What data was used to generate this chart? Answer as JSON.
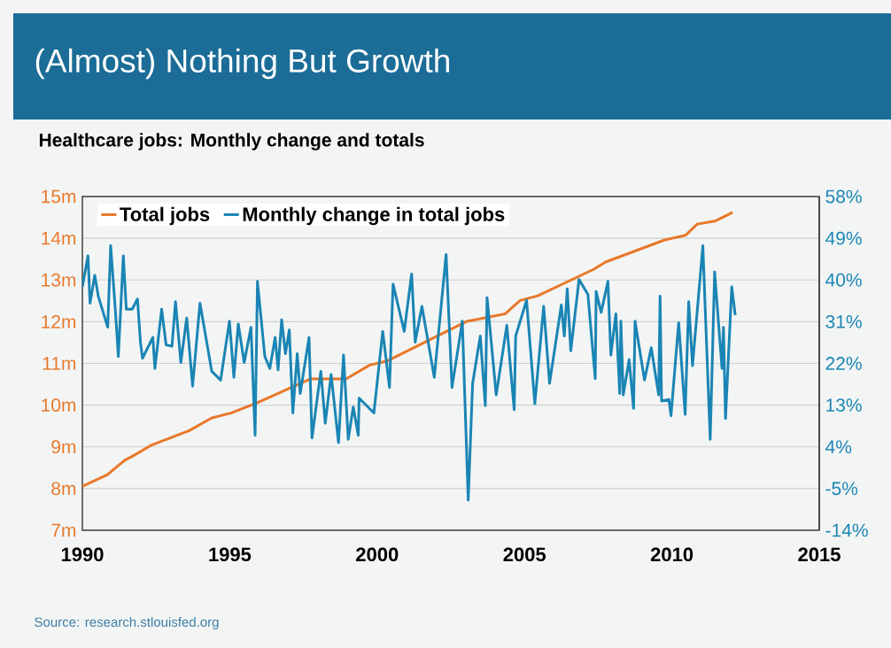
{
  "chart_data": {
    "type": "line",
    "title": "(Almost) Nothing But Growth",
    "subtitle": "Healthcare jobs: Monthly change and totals",
    "annotations": [
      "Source: research.stlouisfed.org"
    ],
    "xlim": [
      1990,
      2015
    ],
    "xticks": [
      1990,
      1995,
      2000,
      2005,
      2010,
      2015
    ],
    "ylim": [
      7,
      15
    ],
    "yticks": [
      {
        "value": 7,
        "label": "7m"
      },
      {
        "value": 8,
        "label": "8m"
      },
      {
        "value": 9,
        "label": "9m"
      },
      {
        "value": 10,
        "label": "10m"
      },
      {
        "value": 11,
        "label": "11m"
      },
      {
        "value": 12,
        "label": "12m"
      },
      {
        "value": 13,
        "label": "13m"
      },
      {
        "value": 14,
        "label": "14m"
      },
      {
        "value": 15,
        "label": "15m"
      }
    ],
    "y2lim": [
      -14,
      58
    ],
    "y2ticks": [
      {
        "value": -14,
        "label": "-14%"
      },
      {
        "value": -5,
        "label": "-5%"
      },
      {
        "value": 4,
        "label": "4%"
      },
      {
        "value": 13,
        "label": "13%"
      },
      {
        "value": 22,
        "label": "22%"
      },
      {
        "value": 31,
        "label": "31%"
      },
      {
        "value": 40,
        "label": "40%"
      },
      {
        "value": 49,
        "label": "49%"
      },
      {
        "value": 58,
        "label": "58%"
      }
    ],
    "grid": "y",
    "legend": "top left",
    "series": [
      {
        "name": "Total jobs",
        "color": "#e8782a",
        "x": [
          1990.0,
          1990.84,
          1991.44,
          1991.74,
          1992.34,
          1993.63,
          1994.38,
          1995.04,
          1995.94,
          1997.14,
          1997.65,
          1997.75,
          1998.95,
          1999.75,
          2000.35,
          2001.45,
          2003.05,
          2004.35,
          2004.85,
          2005.45,
          2007.36,
          2007.75,
          2009.76,
          2010.46,
          2010.86,
          2011.46,
          2012.06
        ],
        "values": [
          8.05,
          8.33,
          8.68,
          8.79,
          9.04,
          9.39,
          9.69,
          9.81,
          10.06,
          10.44,
          10.6,
          10.63,
          10.63,
          10.96,
          11.06,
          11.45,
          12.01,
          12.19,
          12.51,
          12.62,
          13.26,
          13.43,
          13.96,
          14.07,
          14.34,
          14.41,
          14.62
        ]
      },
      {
        "name": "Monthly change in total jobs",
        "color": "#1a85b4",
        "axis": "y2",
        "x": [
          1990.0,
          1990.19,
          1990.26,
          1990.42,
          1990.54,
          1990.86,
          1990.96,
          1991.12,
          1991.22,
          1991.39,
          1991.49,
          1991.69,
          1991.87,
          1991.97,
          1992.04,
          1992.39,
          1992.46,
          1992.69,
          1992.84,
          1993.04,
          1993.16,
          1993.34,
          1993.54,
          1993.74,
          1993.99,
          1994.39,
          1994.69,
          1994.99,
          1995.14,
          1995.29,
          1995.49,
          1995.72,
          1995.86,
          1995.94,
          1996.19,
          1996.36,
          1996.54,
          1996.64,
          1996.76,
          1996.89,
          1997.02,
          1997.14,
          1997.29,
          1997.39,
          1997.69,
          1997.79,
          1998.09,
          1998.24,
          1998.44,
          1998.69,
          1998.86,
          1999.02,
          1999.19,
          1999.36,
          1999.39,
          1999.89,
          2000.19,
          2000.42,
          2000.54,
          2000.92,
          2001.17,
          2001.29,
          2001.52,
          2001.94,
          2002.34,
          2002.54,
          2002.89,
          2003.09,
          2003.24,
          2003.5,
          2003.67,
          2003.73,
          2004.04,
          2004.4,
          2004.65,
          2004.7,
          2005.07,
          2005.35,
          2005.65,
          2005.85,
          2006.25,
          2006.35,
          2006.45,
          2006.57,
          2006.85,
          2007.15,
          2007.4,
          2007.43,
          2007.6,
          2007.83,
          2007.93,
          2008.1,
          2008.23,
          2008.27,
          2008.35,
          2008.55,
          2008.7,
          2008.75,
          2009.07,
          2009.3,
          2009.55,
          2009.6,
          2009.65,
          2009.9,
          2009.97,
          2010.23,
          2010.45,
          2010.57,
          2010.7,
          2011.05,
          2011.3,
          2011.45,
          2011.7,
          2011.75,
          2011.82,
          2012.03,
          2012.15
        ],
        "values": [
          38.5,
          45.2,
          35.0,
          41.0,
          36.5,
          29.8,
          47.4,
          33.4,
          23.5,
          45.2,
          33.7,
          33.7,
          35.9,
          26.6,
          23.1,
          27.6,
          20.9,
          33.7,
          26.0,
          25.7,
          35.3,
          22.2,
          31.8,
          17.1,
          35.0,
          20.3,
          18.4,
          31.1,
          19.0,
          30.5,
          22.2,
          29.8,
          6.5,
          39.7,
          23.5,
          20.9,
          27.6,
          20.6,
          31.4,
          24.1,
          29.2,
          11.3,
          24.1,
          15.5,
          27.6,
          5.9,
          20.3,
          9.1,
          19.6,
          4.9,
          23.8,
          5.6,
          12.6,
          6.5,
          14.5,
          11.3,
          28.9,
          16.8,
          39.1,
          28.9,
          41.3,
          26.6,
          34.3,
          19.0,
          45.5,
          16.8,
          31.1,
          -7.5,
          17.7,
          27.9,
          12.9,
          36.2,
          15.2,
          30.2,
          12.0,
          27.9,
          35.6,
          13.3,
          34.3,
          17.7,
          34.6,
          27.9,
          38.1,
          24.7,
          40.1,
          36.9,
          18.7,
          37.5,
          33.0,
          39.7,
          23.8,
          32.7,
          15.5,
          31.1,
          15.2,
          22.8,
          12.3,
          31.1,
          18.4,
          25.4,
          15.2,
          36.5,
          13.9,
          14.2,
          10.7,
          30.8,
          11.0,
          35.3,
          21.5,
          47.4,
          5.6,
          41.7,
          20.9,
          29.8,
          10.1,
          38.5,
          32.4
        ]
      }
    ]
  }
}
